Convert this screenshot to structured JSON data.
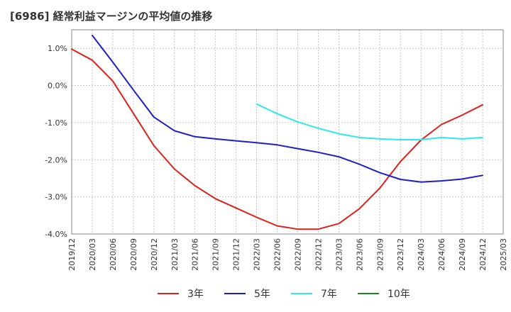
{
  "chart_data": {
    "type": "line",
    "title": "[6986]  経常利益マージンの平均値の推移",
    "xlabel": "",
    "ylabel": "",
    "ylim": [
      -4.0,
      1.5
    ],
    "y_ticks": [
      1.0,
      0.0,
      -1.0,
      -2.0,
      -3.0,
      -4.0
    ],
    "y_tick_labels": [
      "1.0%",
      "0.0%",
      "-1.0%",
      "-2.0%",
      "-3.0%",
      "-4.0%"
    ],
    "x_tick_labels": [
      "2019/12",
      "2020/03",
      "2020/06",
      "2020/09",
      "2020/12",
      "2021/03",
      "2021/06",
      "2021/09",
      "2021/12",
      "2022/03",
      "2022/06",
      "2022/09",
      "2022/12",
      "2023/03",
      "2023/06",
      "2023/09",
      "2023/12",
      "2024/03",
      "2024/06",
      "2024/09",
      "2024/12",
      "2025/03"
    ],
    "grid": true,
    "legend_position": "bottom",
    "series": [
      {
        "name": "3年",
        "color": "#e0201b",
        "x": [
          "2019/12",
          "2020/03",
          "2020/06",
          "2020/09",
          "2020/12",
          "2021/03",
          "2021/06",
          "2021/09",
          "2021/12",
          "2022/03",
          "2022/06",
          "2022/09",
          "2022/12",
          "2023/03",
          "2023/06",
          "2023/09",
          "2023/12",
          "2024/03",
          "2024/06",
          "2024/09",
          "2024/12"
        ],
        "values": [
          0.98,
          0.68,
          0.12,
          -0.75,
          -1.62,
          -2.25,
          -2.7,
          -3.05,
          -3.3,
          -3.55,
          -3.78,
          -3.87,
          -3.87,
          -3.72,
          -3.32,
          -2.76,
          -2.05,
          -1.47,
          -1.05,
          -0.8,
          -0.52
        ]
      },
      {
        "name": "5年",
        "color": "#1c1fc8",
        "x": [
          "2020/03",
          "2020/06",
          "2020/09",
          "2020/12",
          "2021/03",
          "2021/06",
          "2021/09",
          "2021/12",
          "2022/03",
          "2022/06",
          "2022/09",
          "2022/12",
          "2023/03",
          "2023/06",
          "2023/09",
          "2023/12",
          "2024/03",
          "2024/06",
          "2024/09",
          "2024/12"
        ],
        "values": [
          1.35,
          0.63,
          -0.12,
          -0.85,
          -1.22,
          -1.38,
          -1.44,
          -1.49,
          -1.54,
          -1.6,
          -1.7,
          -1.8,
          -1.92,
          -2.12,
          -2.35,
          -2.53,
          -2.6,
          -2.57,
          -2.52,
          -2.42
        ]
      },
      {
        "name": "7年",
        "color": "#2ee8ee",
        "x": [
          "2022/03",
          "2022/06",
          "2022/09",
          "2022/12",
          "2023/03",
          "2023/06",
          "2023/09",
          "2023/12",
          "2024/03",
          "2024/06",
          "2024/09",
          "2024/12"
        ],
        "values": [
          -0.5,
          -0.76,
          -0.98,
          -1.15,
          -1.3,
          -1.4,
          -1.44,
          -1.46,
          -1.46,
          -1.4,
          -1.44,
          -1.4
        ]
      },
      {
        "name": "10年",
        "color": "#1e8a1e",
        "x": [],
        "values": []
      }
    ]
  }
}
